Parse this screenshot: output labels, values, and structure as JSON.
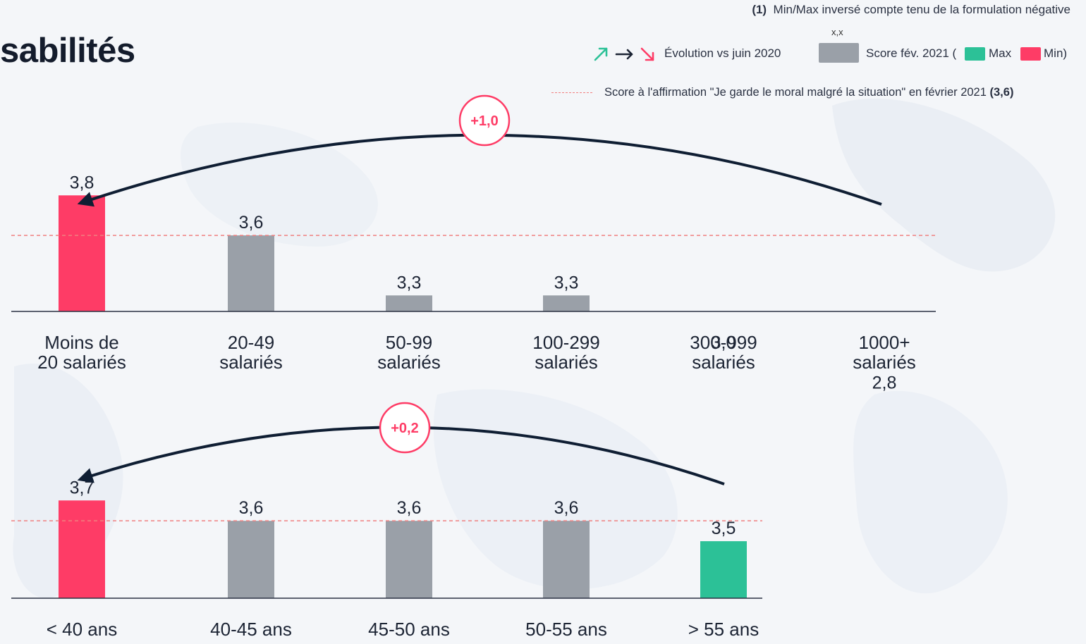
{
  "page": {
    "title": "sabilités",
    "footnote_num": "(1)",
    "footnote_text": "Min/Max inversé compte tenu de la formulation négative"
  },
  "legend": {
    "xx_label": "x,x",
    "evolution_label": "Évolution vs juin 2020",
    "score_label": "Score fév. 2021 (",
    "max_label": "Max",
    "min_label": "Min)",
    "ref_line_label": "Score à l'affirmation \"Je garde le moral malgré la situation\" en février 2021",
    "ref_line_value": "(3,6)",
    "colors": {
      "gray": "#9aa0a8",
      "max": "#2cc197",
      "min": "#fe3c66",
      "ref_line": "#f08080",
      "arrow": "#0f1e33"
    }
  },
  "chart_data": [
    {
      "type": "bar",
      "categories": [
        "Moins de\n20 salariés",
        "20-49\nsalariés",
        "50-99\nsalariés",
        "100-299\nsalariés",
        "300-999\nsalariés",
        "1000+\nsalariés"
      ],
      "values": [
        3.8,
        3.6,
        3.3,
        3.3,
        3.0,
        2.8
      ],
      "value_labels": [
        "3,8",
        "3,6",
        "3,3",
        "3,3",
        "3,0",
        "2,8"
      ],
      "bar_colors": [
        "min",
        "gray",
        "gray",
        "gray",
        "gray",
        "max"
      ],
      "reference_line": 3.6,
      "evolution_label": "+1,0"
    },
    {
      "type": "bar",
      "categories": [
        "< 40 ans",
        "40-45 ans",
        "45-50 ans",
        "50-55 ans",
        "> 55 ans"
      ],
      "values": [
        3.7,
        3.6,
        3.6,
        3.6,
        3.5
      ],
      "value_labels": [
        "3,7",
        "3,6",
        "3,6",
        "3,6",
        "3,5"
      ],
      "bar_colors": [
        "min",
        "gray",
        "gray",
        "gray",
        "max"
      ],
      "reference_line": 3.6,
      "evolution_label": "+0,2"
    }
  ]
}
